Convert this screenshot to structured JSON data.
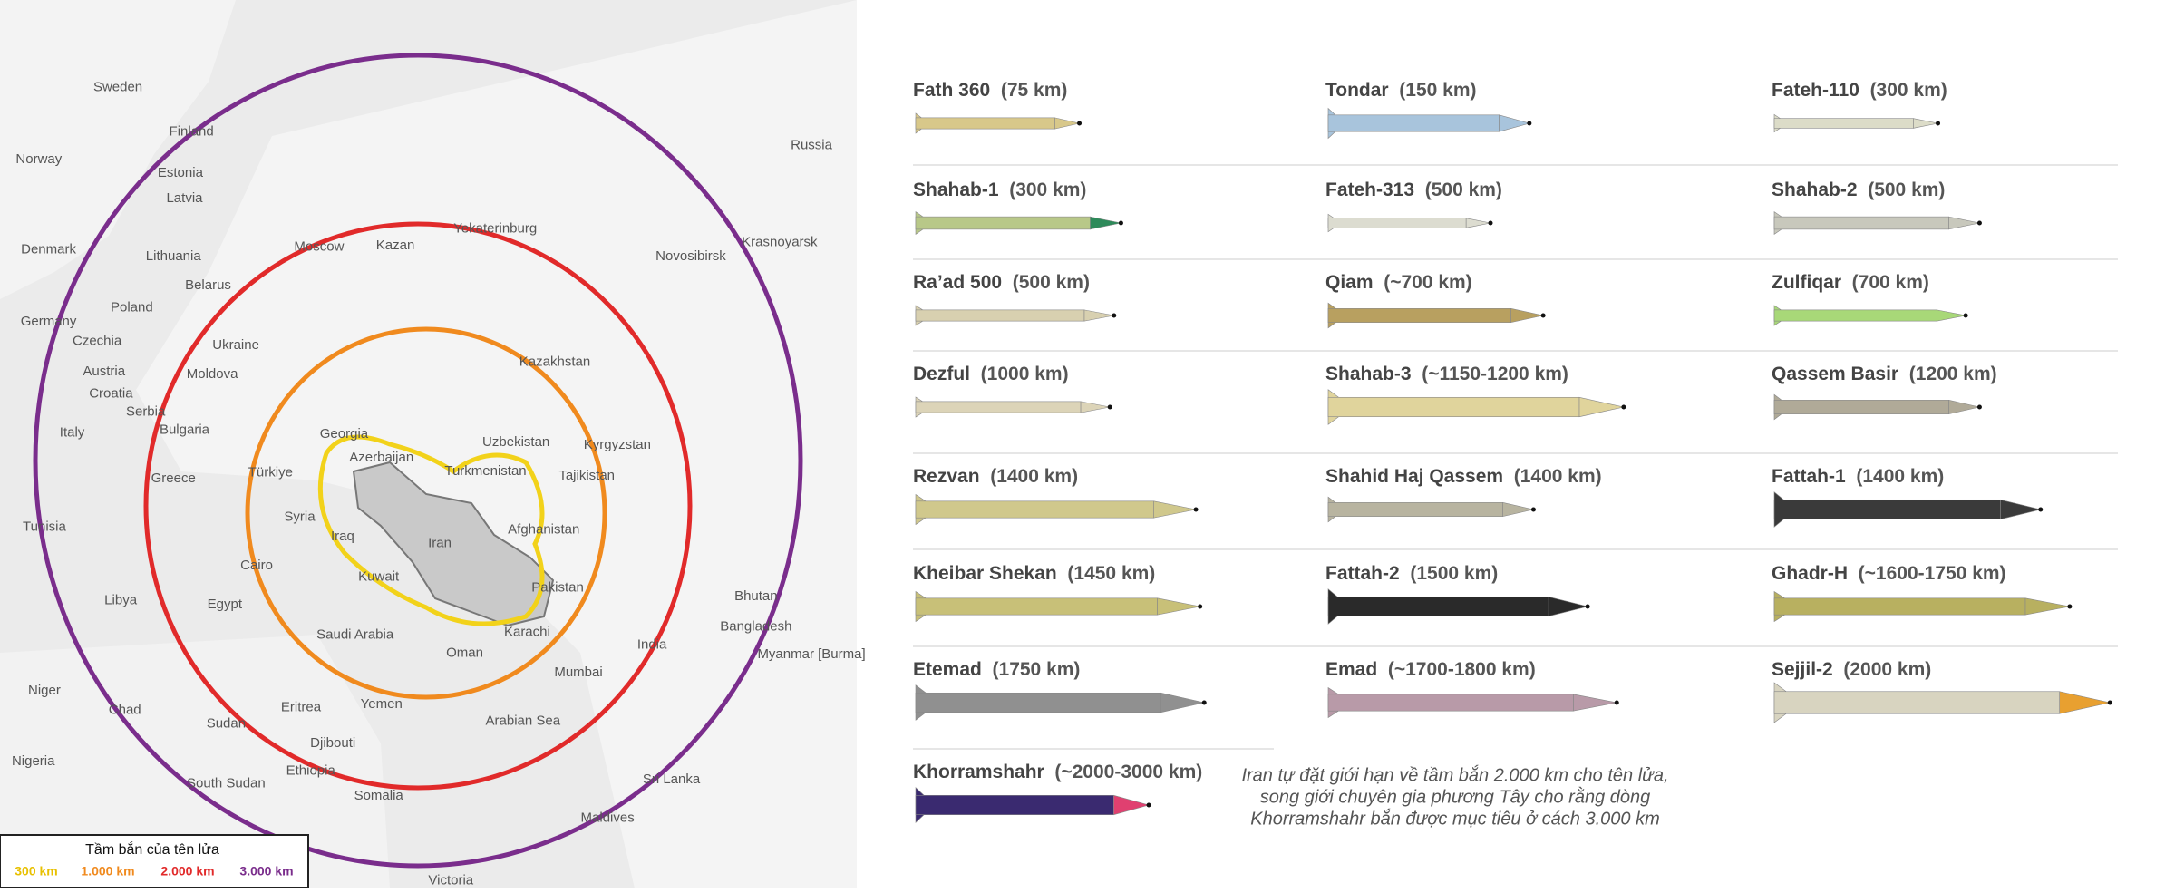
{
  "map": {
    "labels": [
      "Sweden",
      "Finland",
      "Norway",
      "Russia",
      "Estonia",
      "Latvia",
      "Lithuania",
      "Denmark",
      "Moscow",
      "Kazan",
      "Yekaterinburg",
      "Novosibirsk",
      "Krasnoyarsk",
      "Belarus",
      "Poland",
      "Germany",
      "Czechia",
      "Ukraine",
      "Moldova",
      "Kazakhstan",
      "Austria",
      "Croatia",
      "Serbia",
      "Bulgaria",
      "Italy",
      "Uzbekistan",
      "Kyrgyzstan",
      "Georgia",
      "Azerbaijan",
      "Türkiye",
      "Turkmenistan",
      "Tajikistan",
      "Greece",
      "Syria",
      "Iraq",
      "Iran",
      "Afghanistan",
      "Tunisia",
      "Kuwait",
      "Pakistan",
      "Libya",
      "Egypt",
      "Cairo",
      "Bhutan",
      "Bangladesh",
      "India",
      "Saudi Arabia",
      "Oman",
      "Karachi",
      "Mumbai",
      "Myanmar [Burma]",
      "Niger",
      "Chad",
      "Sudan",
      "Eritrea",
      "Yemen",
      "Arabian Sea",
      "Djibouti",
      "Ethiopia",
      "Nigeria",
      "South Sudan",
      "Somalia",
      "Sri Lanka",
      "Maldives",
      "Victoria"
    ],
    "legend": {
      "title": "Tầm bắn của tên lửa",
      "items": [
        "300 km",
        "1.000 km",
        "2.000 km",
        "3.000 km"
      ]
    }
  },
  "missiles": [
    {
      "name": "Fath 360",
      "range": "(75 km)"
    },
    {
      "name": "Tondar",
      "range": "(150 km)"
    },
    {
      "name": "Fateh-110",
      "range": "(300 km)"
    },
    {
      "name": "Shahab-1",
      "range": "(300 km)"
    },
    {
      "name": "Fateh-313",
      "range": "(500 km)"
    },
    {
      "name": "Shahab-2",
      "range": "(500 km)"
    },
    {
      "name": "Ra’ad 500",
      "range": "(500 km)"
    },
    {
      "name": "Qiam",
      "range": "(~700 km)"
    },
    {
      "name": "Zulfiqar",
      "range": "(700 km)"
    },
    {
      "name": "Dezful",
      "range": "(1000 km)"
    },
    {
      "name": "Shahab-3",
      "range": "(~1150-1200 km)"
    },
    {
      "name": "Qassem Basir",
      "range": "(1200 km)"
    },
    {
      "name": "Rezvan",
      "range": "(1400 km)"
    },
    {
      "name": "Shahid Haj Qassem",
      "range": "(1400 km)"
    },
    {
      "name": "Fattah-1",
      "range": "(1400 km)"
    },
    {
      "name": "Kheibar Shekan",
      "range": "(1450 km)"
    },
    {
      "name": "Fattah-2",
      "range": "(1500 km)"
    },
    {
      "name": "Ghadr-H",
      "range": "(~1600-1750 km)"
    },
    {
      "name": "Etemad",
      "range": "(1750 km)"
    },
    {
      "name": "Emad",
      "range": "(~1700-1800 km)"
    },
    {
      "name": "Sejjil-2",
      "range": "(2000 km)"
    },
    {
      "name": "Khorramshahr",
      "range": "(~2000-3000 km)"
    }
  ],
  "note": [
    "Iran tự đặt giới hạn về tầm bắn 2.000 km cho  tên lửa,",
    "song giới chuyên gia phương Tây cho rằng dòng",
    "Khorramshahr bắn được mục tiêu ở cách 3.000 km"
  ]
}
